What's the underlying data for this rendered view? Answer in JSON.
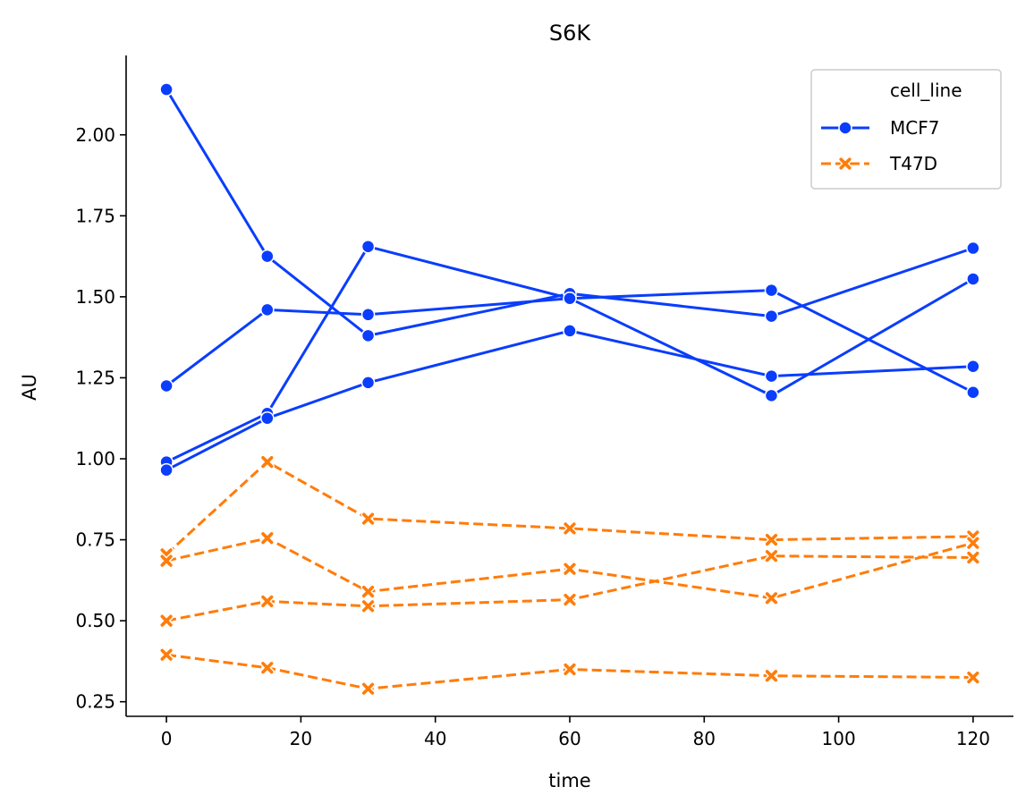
{
  "chart_data": {
    "type": "line",
    "title": "S6K",
    "xlabel": "time",
    "ylabel": "AU",
    "xlim": [
      -6,
      126
    ],
    "ylim": [
      0.205,
      2.245
    ],
    "xticks": [
      0,
      20,
      40,
      60,
      80,
      100,
      120
    ],
    "yticks": [
      0.25,
      0.5,
      0.75,
      1.0,
      1.25,
      1.5,
      1.75,
      2.0
    ],
    "ytick_labels": [
      "0.25",
      "0.50",
      "0.75",
      "1.00",
      "1.25",
      "1.50",
      "1.75",
      "2.00"
    ],
    "grid": false,
    "x": [
      0,
      15,
      30,
      60,
      90,
      120
    ],
    "legend": {
      "title": "cell_line",
      "placement": "top-right",
      "entries": [
        "MCF7",
        "T47D"
      ]
    },
    "colors": {
      "MCF7": "#0a3dfc",
      "T47D": "#ff7c0a"
    },
    "groups": [
      {
        "label": "MCF7",
        "marker": "circle",
        "linestyle": "solid",
        "lines": [
          [
            2.14,
            1.625,
            1.38,
            1.51,
            1.44,
            1.65
          ],
          [
            1.225,
            1.46,
            1.445,
            1.495,
            1.52,
            1.205
          ],
          [
            0.99,
            1.14,
            1.655,
            1.495,
            1.195,
            1.555
          ],
          [
            0.965,
            1.125,
            1.235,
            1.395,
            1.255,
            1.285
          ]
        ]
      },
      {
        "label": "T47D",
        "marker": "x",
        "linestyle": "dashed",
        "lines": [
          [
            0.705,
            0.99,
            0.815,
            0.785,
            0.75,
            0.76
          ],
          [
            0.685,
            0.755,
            0.59,
            0.66,
            0.57,
            0.74
          ],
          [
            0.5,
            0.56,
            0.545,
            0.565,
            0.7,
            0.695
          ],
          [
            0.395,
            0.355,
            0.29,
            0.35,
            0.33,
            0.325
          ]
        ]
      }
    ]
  }
}
